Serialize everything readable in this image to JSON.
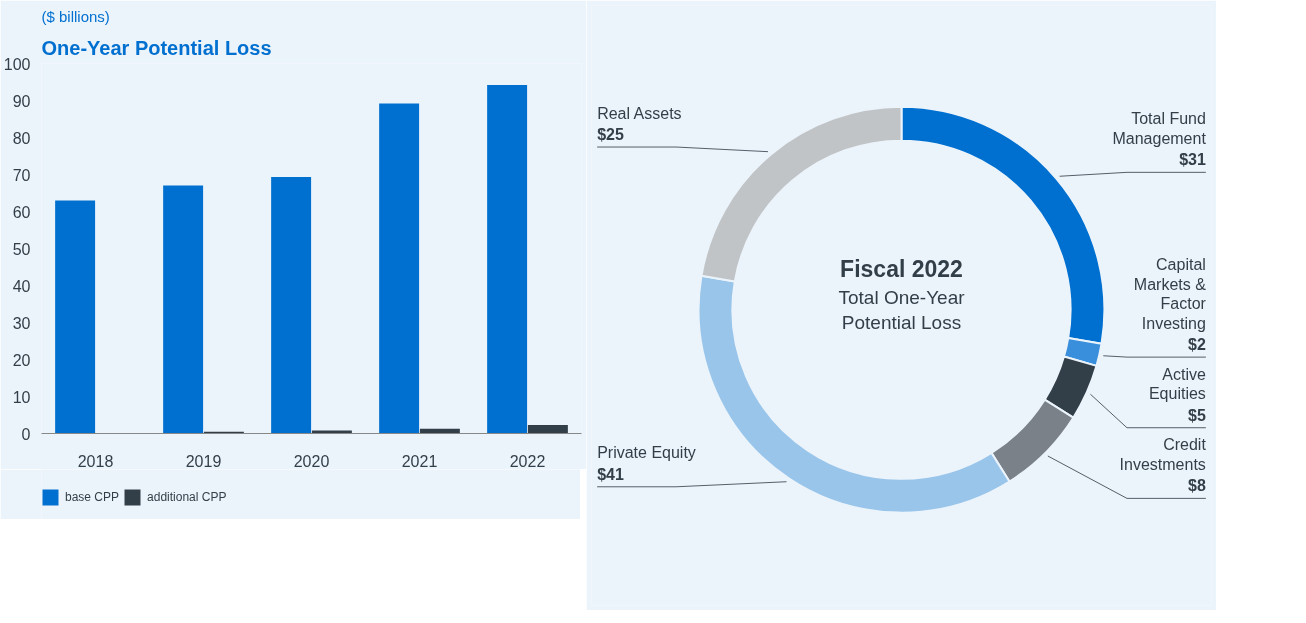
{
  "chart_data": [
    {
      "type": "bar",
      "title": "One-Year Potential Loss",
      "subtitle": "($ billions)",
      "categories": [
        "2018",
        "2019",
        "2020",
        "2021",
        "2022"
      ],
      "series": [
        {
          "name": "base CPP",
          "color": "#0070d0",
          "values": [
            63,
            67,
            69.3,
            89.2,
            94.2
          ]
        },
        {
          "name": "additional CPP",
          "color": "#323e48",
          "values": [
            0.1,
            0.5,
            0.8,
            1.3,
            2.3
          ]
        }
      ],
      "ylim": [
        0,
        100
      ],
      "yticks": [
        0,
        10,
        20,
        30,
        40,
        50,
        60,
        70,
        80,
        90,
        100
      ],
      "grid": false,
      "legend": "bottom left"
    },
    {
      "type": "donut",
      "title": "Fiscal 2022",
      "subtitle": "Total One-Year Potential Loss",
      "categories": [
        "Total Fund Management",
        "Capital Markets & Factor Investing",
        "Active Equities",
        "Credit Investments",
        "Private Equity",
        "Real Assets"
      ],
      "values": [
        31,
        2,
        5,
        8,
        41,
        25
      ],
      "colors": [
        "#0070d0",
        "#3a8fdc",
        "#323e48",
        "#7b8189",
        "#99c5ea",
        "#c1c4c7"
      ],
      "value_labels": [
        "$31",
        "$2",
        "$5",
        "$8",
        "$41",
        "$25"
      ]
    }
  ]
}
